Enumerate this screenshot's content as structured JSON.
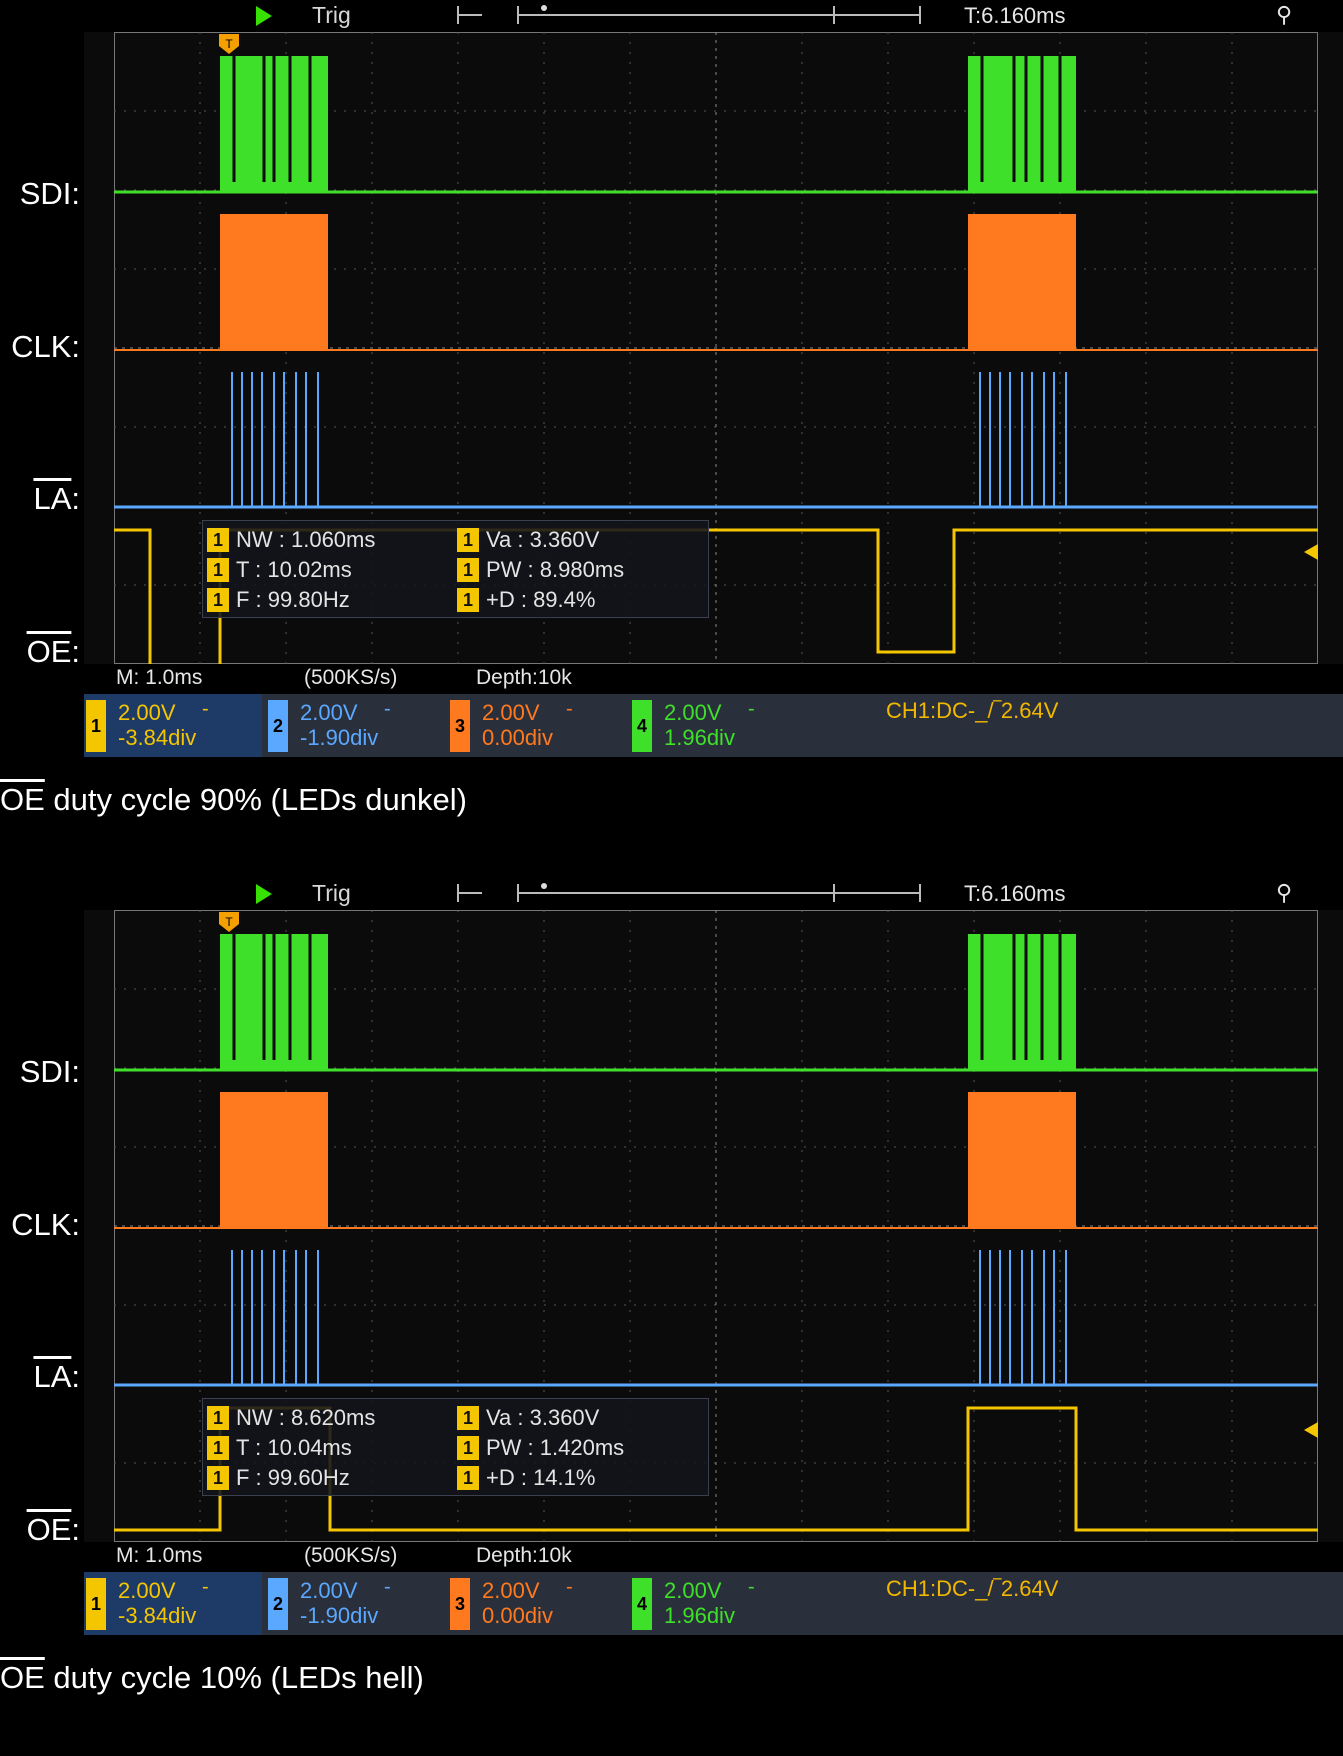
{
  "panels": [
    {
      "trig": "Trig",
      "time": "T:6.160ms",
      "channel_labels": {
        "sdi": "SDI:",
        "clk": "CLK:",
        "la": "LA",
        "oe": "OE"
      },
      "measurements": {
        "nw_label": "NW : 1.060ms",
        "t_label": "T : 10.02ms",
        "f_label": "F : 99.80Hz",
        "va_label": "Va : 3.360V",
        "pw_label": "PW : 8.980ms",
        "d_label": "+D : 89.4%"
      },
      "info": {
        "m": "M: 1.0ms",
        "rate": "(500KS/s)",
        "depth": "Depth:10k"
      },
      "channels": [
        {
          "num": "1",
          "volts": "2.00V",
          "offset": "-3.84div",
          "color": "#f4c600",
          "bg": "#1e3a66"
        },
        {
          "num": "2",
          "volts": "2.00V",
          "offset": "-1.90div",
          "color": "#5aa8ff",
          "bg": "#2a2f3c"
        },
        {
          "num": "3",
          "volts": "2.00V",
          "offset": "0.00div",
          "color": "#ff7a1e",
          "bg": "#2a2f3c"
        },
        {
          "num": "4",
          "volts": "2.00V",
          "offset": "1.96div",
          "color": "#3fe02a",
          "bg": "#2a2f3c"
        }
      ],
      "trigger_info": "CH1:DC-_/‾2.64V",
      "caption_prefix": "OE",
      "caption_text": " duty cycle 90% (LEDs dunkel)",
      "oe_duty_percent": 89.4
    },
    {
      "trig": "Trig",
      "time": "T:6.160ms",
      "channel_labels": {
        "sdi": "SDI:",
        "clk": "CLK:",
        "la": "LA",
        "oe": "OE"
      },
      "measurements": {
        "nw_label": "NW : 8.620ms",
        "t_label": "T : 10.04ms",
        "f_label": "F : 99.60Hz",
        "va_label": "Va : 3.360V",
        "pw_label": "PW : 1.420ms",
        "d_label": "+D : 14.1%"
      },
      "info": {
        "m": "M: 1.0ms",
        "rate": "(500KS/s)",
        "depth": "Depth:10k"
      },
      "channels": [
        {
          "num": "1",
          "volts": "2.00V",
          "offset": "-3.84div",
          "color": "#f4c600",
          "bg": "#1e3a66"
        },
        {
          "num": "2",
          "volts": "2.00V",
          "offset": "-1.90div",
          "color": "#5aa8ff",
          "bg": "#2a2f3c"
        },
        {
          "num": "3",
          "volts": "2.00V",
          "offset": "0.00div",
          "color": "#ff7a1e",
          "bg": "#2a2f3c"
        },
        {
          "num": "4",
          "volts": "2.00V",
          "offset": "1.96div",
          "color": "#3fe02a",
          "bg": "#2a2f3c"
        }
      ],
      "trigger_info": "CH1:DC-_/‾2.64V",
      "caption_prefix": "OE",
      "caption_text": " duty cycle 10% (LEDs hell)",
      "oe_duty_percent": 14.1
    }
  ]
}
